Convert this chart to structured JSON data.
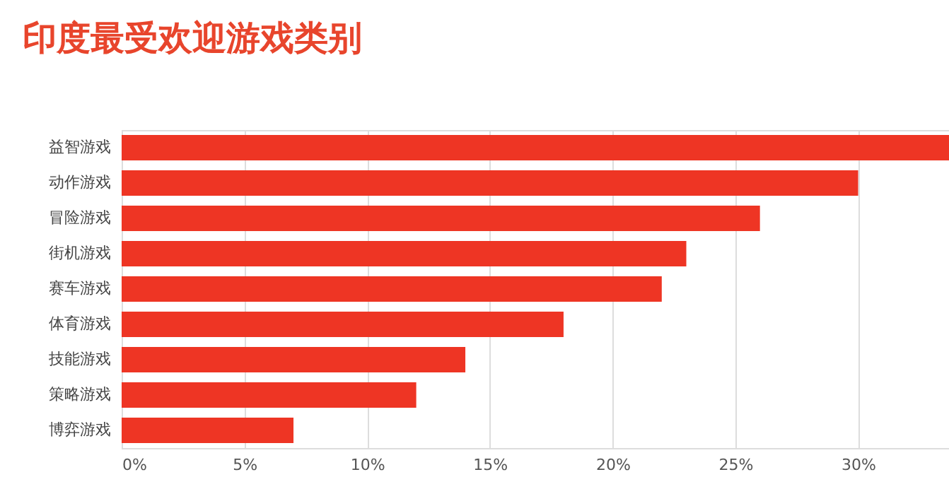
{
  "chart_data": {
    "type": "bar",
    "orientation": "horizontal",
    "title": "印度最受欢迎游戏类别",
    "categories": [
      "益智游戏",
      "动作游戏",
      "冒险游戏",
      "街机游戏",
      "赛车游戏",
      "体育游戏",
      "技能游戏",
      "策略游戏",
      "博弈游戏"
    ],
    "values": [
      33.7,
      30,
      26,
      23,
      22,
      18,
      14,
      12,
      7
    ],
    "color": "#ee3524",
    "xlim": [
      0,
      33.7
    ],
    "xticks": [
      {
        "value": 0,
        "label": "0%"
      },
      {
        "value": 5,
        "label": "5%"
      },
      {
        "value": 10,
        "label": "10%"
      },
      {
        "value": 15,
        "label": "15%"
      },
      {
        "value": 20,
        "label": "20%"
      },
      {
        "value": 25,
        "label": "25%"
      },
      {
        "value": 30,
        "label": "30%"
      }
    ],
    "grid": "x"
  }
}
